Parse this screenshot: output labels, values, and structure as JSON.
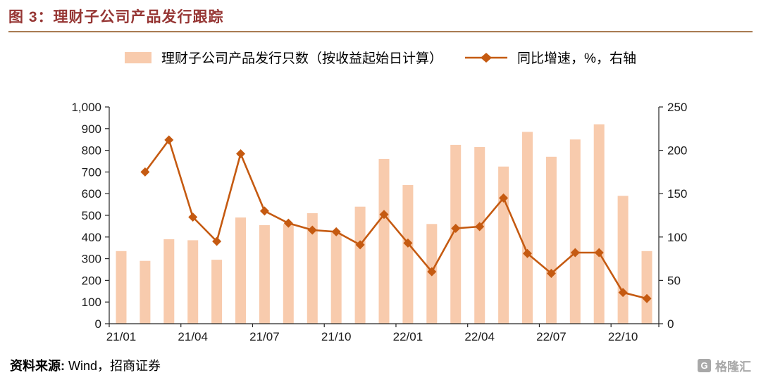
{
  "header": {
    "title": "图 3：理财子公司产品发行跟踪"
  },
  "legend": {
    "bar_label": "理财子公司产品发行只数（按收益起始日计算）",
    "line_label": "同比增速，%，右轴"
  },
  "chart_data": {
    "type": "bar",
    "title": "理财子公司产品发行跟踪",
    "categories": [
      "21/01",
      "21/02",
      "21/03",
      "21/04",
      "21/05",
      "21/06",
      "21/07",
      "21/08",
      "21/09",
      "21/10",
      "21/11",
      "21/12",
      "22/01",
      "22/02",
      "22/03",
      "22/04",
      "22/05",
      "22/06",
      "22/07",
      "22/08",
      "22/09",
      "22/10",
      "22/11"
    ],
    "x_tick_labels": [
      "21/01",
      "21/04",
      "21/07",
      "21/10",
      "22/01",
      "22/04",
      "22/07",
      "22/10"
    ],
    "series": [
      {
        "name": "理财子公司产品发行只数（按收益起始日计算）",
        "type": "bar",
        "axis": "left",
        "values": [
          335,
          290,
          390,
          385,
          295,
          490,
          455,
          460,
          510,
          420,
          540,
          760,
          640,
          460,
          825,
          815,
          725,
          885,
          770,
          850,
          920,
          590,
          335
        ]
      },
      {
        "name": "同比增速，%，右轴",
        "type": "line",
        "axis": "right",
        "values": [
          null,
          175,
          212,
          123,
          95,
          196,
          130,
          116,
          108,
          106,
          91,
          126,
          93,
          60,
          110,
          112,
          145,
          81,
          58,
          82,
          82,
          36,
          29
        ]
      }
    ],
    "left_axis": {
      "min": 0,
      "max": 1000,
      "step": 100
    },
    "right_axis": {
      "min": 0,
      "max": 250,
      "step": 50
    },
    "grid": false,
    "legend_position": "top",
    "colors": {
      "bar": "#F8CBAD",
      "line": "#C55A11"
    }
  },
  "theme": {
    "title_color": "#963634",
    "rule_color": "#A87B52"
  },
  "footer": {
    "source_label": "资料来源:",
    "source_value": "Wind，招商证券"
  },
  "watermark": {
    "icon": "G",
    "text": "格隆汇"
  }
}
